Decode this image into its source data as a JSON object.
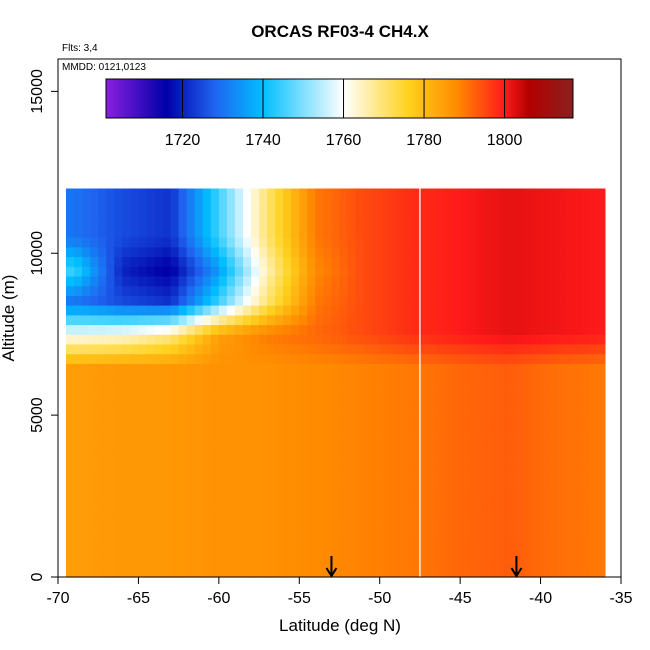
{
  "chart_data": {
    "type": "heatmap",
    "title": "ORCAS RF03-4 CH4.X",
    "xlabel": "Latitude (deg N)",
    "ylabel": "Altitude (m)",
    "flights_note": "Flts: 3,4",
    "mmdd_note": "MMDD: 0121,0123",
    "xlim": [
      -70,
      -35
    ],
    "ylim": [
      0,
      16000
    ],
    "x_ticks": [
      "-70",
      "-65",
      "-60",
      "-55",
      "-50",
      "-45",
      "-40",
      "-35"
    ],
    "x_tick_values": [
      -70,
      -65,
      -60,
      -55,
      -50,
      -45,
      -40,
      -35
    ],
    "y_ticks": [
      "0",
      "5000",
      "10000",
      "15000"
    ],
    "y_tick_values": [
      0,
      5000,
      10000,
      15000
    ],
    "colorbar": {
      "min": 1701,
      "max": 1817,
      "ticks": [
        "1720",
        "1740",
        "1760",
        "1780",
        "1800"
      ],
      "tick_values": [
        1720,
        1740,
        1760,
        1780,
        1800
      ],
      "colors": [
        "#8a1fe0",
        "#0000a8",
        "#1f64f0",
        "#00bfff",
        "#ffffff",
        "#ffd21e",
        "#ff8c00",
        "#ff1a1a",
        "#b30000",
        "#8b2020"
      ],
      "color_stops": [
        1701,
        1716,
        1728,
        1740,
        1760,
        1776,
        1788,
        1800,
        1806,
        1817
      ]
    },
    "curtain": {
      "lat_min": -69.5,
      "lat_max": -36,
      "alt_max": 12000,
      "separator_lat": -47.5,
      "grid_lat": [
        -69,
        -66,
        -63,
        -60,
        -57,
        -54,
        -51,
        -48,
        -45,
        -42,
        -39,
        -36
      ],
      "grid_alt": [
        500,
        2500,
        4500,
        6500,
        7500,
        8500,
        9500,
        10500,
        11500
      ],
      "grid_values": [
        [
          1785,
          1786,
          1786,
          1787,
          1787,
          1788,
          1789,
          1790,
          1792,
          1793,
          1791,
          1790
        ],
        [
          1785,
          1786,
          1786,
          1787,
          1787,
          1788,
          1789,
          1790,
          1792,
          1793,
          1791,
          1790
        ],
        [
          1785,
          1786,
          1786,
          1787,
          1787,
          1788,
          1789,
          1790,
          1792,
          1793,
          1791,
          1790
        ],
        [
          1785,
          1786,
          1786,
          1787,
          1787,
          1788,
          1789,
          1790,
          1792,
          1793,
          1791,
          1790
        ],
        [
          1760,
          1762,
          1768,
          1785,
          1790,
          1792,
          1795,
          1798,
          1800,
          1802,
          1801,
          1800
        ],
        [
          1730,
          1725,
          1722,
          1745,
          1770,
          1790,
          1795,
          1798,
          1800,
          1802,
          1801,
          1800
        ],
        [
          1745,
          1720,
          1715,
          1735,
          1765,
          1788,
          1795,
          1798,
          1800,
          1802,
          1801,
          1800
        ],
        [
          1730,
          1725,
          1722,
          1745,
          1770,
          1790,
          1795,
          1798,
          1800,
          1802,
          1801,
          1800
        ],
        [
          1730,
          1725,
          1722,
          1745,
          1770,
          1790,
          1795,
          1798,
          1800,
          1802,
          1801,
          1800
        ]
      ]
    },
    "arrows_lat": [
      -53,
      -41.5
    ]
  }
}
